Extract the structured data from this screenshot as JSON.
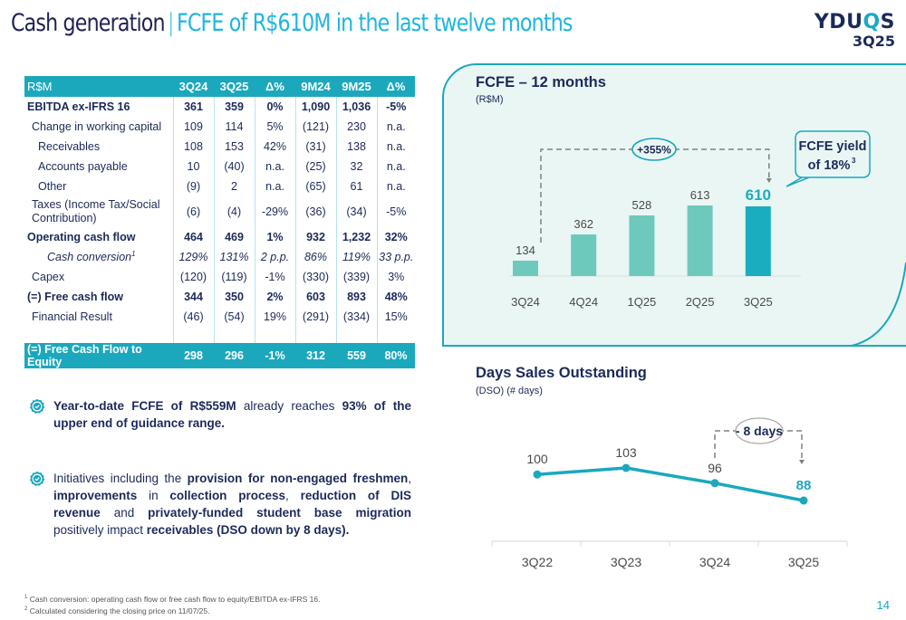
{
  "header": {
    "title_main": "Cash generation",
    "title_separator": "|",
    "title_accent": "FCFE of R$610M in the last twelve months",
    "logo_brand_prefix": "YDU",
    "logo_brand_q": "Q",
    "logo_brand_suffix": "S",
    "logo_period": "3Q25"
  },
  "table": {
    "columns": [
      "R$M",
      "3Q24",
      "3Q25",
      "Δ%",
      "9M24",
      "9M25",
      "Δ%"
    ],
    "rows": [
      {
        "label": "EBITDA ex-IFRS 16",
        "values": [
          "361",
          "359",
          "0%",
          "1,090",
          "1,036",
          "-5%"
        ]
      },
      {
        "label": "Change in working capital",
        "values": [
          "109",
          "114",
          "5%",
          "(121)",
          "230",
          "n.a."
        ]
      },
      {
        "label": "Receivables",
        "values": [
          "108",
          "153",
          "42%",
          "(31)",
          "138",
          "n.a."
        ]
      },
      {
        "label": "Accounts payable",
        "values": [
          "10",
          "(40)",
          "n.a.",
          "(25)",
          "32",
          "n.a."
        ]
      },
      {
        "label": "Other",
        "values": [
          "(9)",
          "2",
          "n.a.",
          "(65)",
          "61",
          "n.a."
        ]
      },
      {
        "label": "Taxes (Income Tax/Social Contribution)",
        "values": [
          "(6)",
          "(4)",
          "-29%",
          "(36)",
          "(34)",
          "-5%"
        ]
      },
      {
        "label": "Operating cash flow",
        "values": [
          "464",
          "469",
          "1%",
          "932",
          "1,232",
          "32%"
        ]
      },
      {
        "label": "Cash conversion",
        "footnote": "1",
        "values": [
          "129%",
          "131%",
          "2 p.p.",
          "86%",
          "119%",
          "33 p.p."
        ]
      },
      {
        "label": "Capex",
        "values": [
          "(120)",
          "(119)",
          "-1%",
          "(330)",
          "(339)",
          "3%"
        ]
      },
      {
        "label": "(=) Free cash flow",
        "values": [
          "344",
          "350",
          "2%",
          "603",
          "893",
          "48%"
        ]
      },
      {
        "label": "Financial Result",
        "values": [
          "(46)",
          "(54)",
          "19%",
          "(291)",
          "(334)",
          "15%"
        ]
      },
      {
        "label": "(=) Free Cash Flow to Equity",
        "values": [
          "298",
          "296",
          "-1%",
          "312",
          "559",
          "80%"
        ]
      }
    ]
  },
  "bullets": [
    {
      "icon": "check-badge-icon",
      "parts": [
        {
          "text": "Year-to-date FCFE of R$559M",
          "bold": true
        },
        {
          "text": " already reaches ",
          "bold": false
        },
        {
          "text": "93% of the upper end of guidance range.",
          "bold": true
        }
      ]
    },
    {
      "icon": "check-badge-icon",
      "parts": [
        {
          "text": "Initiatives including the ",
          "bold": false
        },
        {
          "text": "provision for non-engaged freshmen",
          "bold": true
        },
        {
          "text": ", ",
          "bold": false
        },
        {
          "text": "improvements",
          "bold": true
        },
        {
          "text": " in ",
          "bold": false
        },
        {
          "text": "collection process",
          "bold": true
        },
        {
          "text": ", ",
          "bold": false
        },
        {
          "text": "reduction of DIS revenue",
          "bold": true
        },
        {
          "text": " and ",
          "bold": false
        },
        {
          "text": "privately-funded student base migration",
          "bold": true
        },
        {
          "text": " positively impact ",
          "bold": false
        },
        {
          "text": "receivables (DSO down by 8 days).",
          "bold": true
        }
      ]
    }
  ],
  "colors": {
    "accent": "#1ba8bd",
    "bar_light": "#6ec9bd",
    "bar_highlight": "#1aadbf",
    "navy": "#1c2a5a",
    "panel_bg": "#eaf6f4",
    "title_accent": "#1fb5e0"
  },
  "chart_data": [
    {
      "type": "bar",
      "title": "FCFE – 12 months",
      "subtitle": "(R$M)",
      "categories": [
        "3Q24",
        "4Q24",
        "1Q25",
        "2Q25",
        "3Q25"
      ],
      "values": [
        134,
        362,
        528,
        613,
        610
      ],
      "highlight_index": 4,
      "xlabel": "",
      "ylabel": "",
      "ylim": [
        0,
        700
      ],
      "grid": false,
      "annotations": {
        "growth_label": "+355%",
        "growth_from": "3Q24",
        "growth_to": "3Q25",
        "callout_line1": "FCFE yield",
        "callout_line2": "of 18%",
        "callout_footnote": "3"
      }
    },
    {
      "type": "line",
      "title": "Days Sales Outstanding",
      "subtitle": "(DSO) (# days)",
      "categories": [
        "3Q22",
        "3Q23",
        "3Q24",
        "3Q25"
      ],
      "values": [
        100,
        103,
        96,
        88
      ],
      "highlight_index": 3,
      "xlabel": "",
      "ylabel": "",
      "ylim": [
        60,
        120
      ],
      "grid": false,
      "annotations": {
        "delta_label": "- 8 days",
        "delta_from": "3Q24",
        "delta_to": "3Q25"
      }
    }
  ],
  "footnotes": [
    {
      "mark": "1",
      "text": " Cash conversion: operating cash flow or free cash flow to equity/EBITDA ex-IFRS 16."
    },
    {
      "mark": "2",
      "text": " Calculated considering the closing price on 11/07/25."
    }
  ],
  "page_number": "14"
}
